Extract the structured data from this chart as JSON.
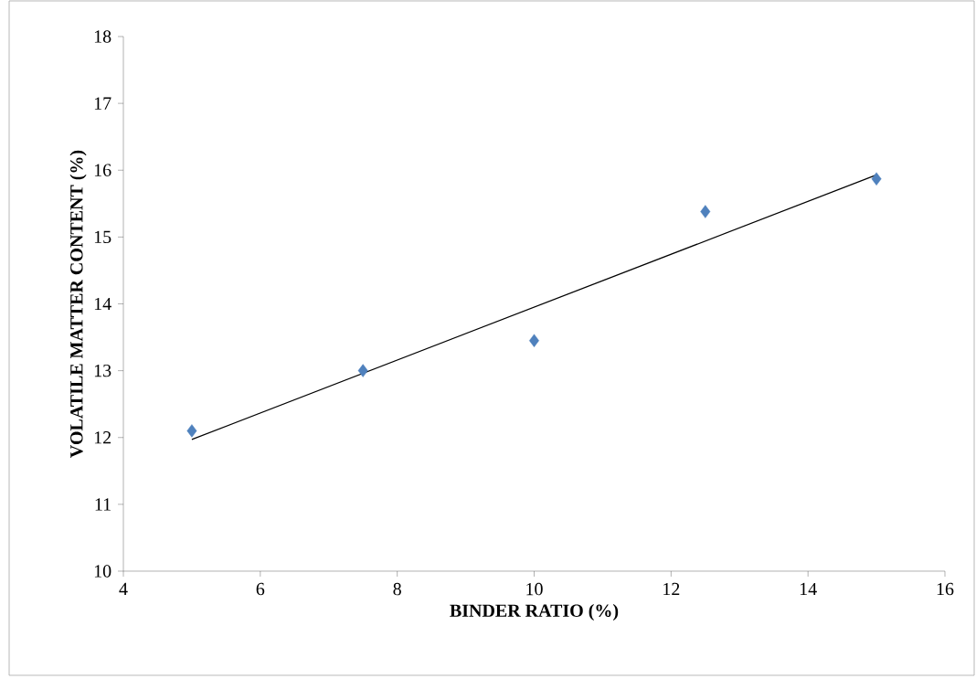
{
  "chart_data": {
    "type": "scatter",
    "xlabel": "BINDER RATIO (%)",
    "ylabel": "VOLATILE MATTER CONTENT (%)",
    "xlim": [
      4,
      16
    ],
    "xticks": [
      4,
      6,
      8,
      10,
      12,
      14,
      16
    ],
    "ylim": [
      10,
      18
    ],
    "yticks": [
      10,
      11,
      12,
      13,
      14,
      15,
      16,
      17,
      18
    ],
    "grid": false,
    "series": [
      {
        "color": "#4f81bd",
        "marker": "diamond",
        "x": [
          5,
          7.5,
          10,
          12.5,
          15
        ],
        "values": [
          12.1,
          13.0,
          13.45,
          15.38,
          15.87
        ]
      },
      {
        "type": "line",
        "color": "#000000",
        "marker": "none",
        "line_style": "solid",
        "x": [
          5,
          15
        ],
        "values": [
          11.97,
          15.93
        ]
      }
    ]
  }
}
